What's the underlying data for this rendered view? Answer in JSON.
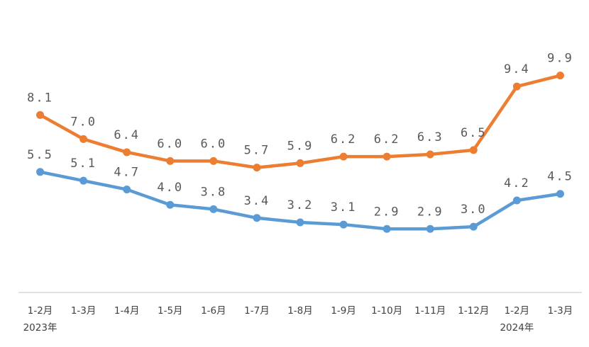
{
  "chart_data": {
    "type": "line",
    "categories": [
      "1-2月",
      "1-3月",
      "1-4月",
      "1-5月",
      "1-6月",
      "1-7月",
      "1-8月",
      "1-9月",
      "1-10月",
      "1-11月",
      "1-12月",
      "1-2月",
      "1-3月"
    ],
    "year_labels": [
      {
        "index": 0,
        "text": "2023年"
      },
      {
        "index": 11,
        "text": "2024年"
      }
    ],
    "series": [
      {
        "name": "orange-series",
        "color": "#ED7D31",
        "values": [
          8.1,
          7.0,
          6.4,
          6.0,
          6.0,
          5.7,
          5.9,
          6.2,
          6.2,
          6.3,
          6.5,
          9.4,
          9.9
        ],
        "labels": [
          "8.1",
          "7.0",
          "6.4",
          "6.0",
          "6.0",
          "5.7",
          "5.9",
          "6.2",
          "6.2",
          "6.3",
          "6.5",
          "9.4",
          "9.9"
        ]
      },
      {
        "name": "blue-series",
        "color": "#5B9BD5",
        "values": [
          5.5,
          5.1,
          4.7,
          4.0,
          3.8,
          3.4,
          3.2,
          3.1,
          2.9,
          2.9,
          3.0,
          4.2,
          4.5
        ],
        "labels": [
          "5.5",
          "5.1",
          "4.7",
          "4.0",
          "3.8",
          "3.4",
          "3.2",
          "3.1",
          "2.9",
          "2.9",
          "3.0",
          "4.2",
          "4.5"
        ]
      }
    ],
    "axis_color": "#D9D9D9",
    "xlabel": "",
    "ylabel": "",
    "ylim": [
      0,
      12.7
    ],
    "grid": false,
    "legend": "none"
  }
}
